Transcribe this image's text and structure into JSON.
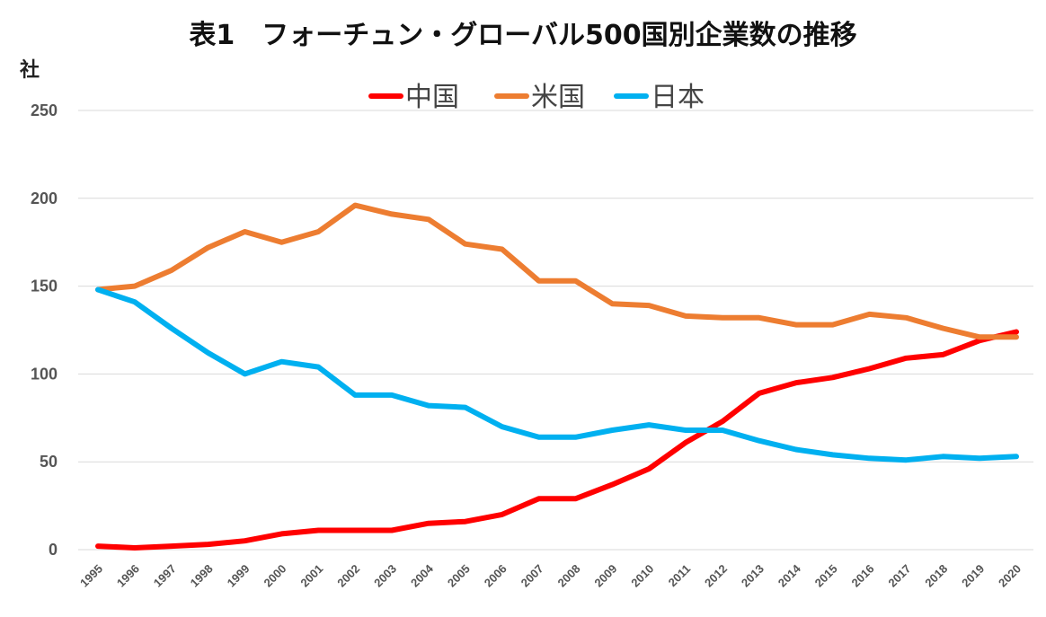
{
  "title": "表1　フォーチュン・グローバル500国別企業数の推移",
  "ylabel": "社",
  "chart_data": {
    "type": "line",
    "title": "表1　フォーチュン・グローバル500国別企業数の推移",
    "xlabel": "",
    "ylabel": "社",
    "ylim": [
      0,
      250
    ],
    "yticks": [
      0,
      50,
      100,
      150,
      200,
      250
    ],
    "grid": true,
    "legend_position": "top-center",
    "x": [
      "1995",
      "1996",
      "1997",
      "1998",
      "1999",
      "2000",
      "2001",
      "2002",
      "2003",
      "2004",
      "2005",
      "2006",
      "2007",
      "2008",
      "2009",
      "2010",
      "2011",
      "2012",
      "2013",
      "2014",
      "2015",
      "2016",
      "2017",
      "2018",
      "2019",
      "2020"
    ],
    "series": [
      {
        "name": "中国",
        "color": "#ff0000",
        "values": [
          2,
          1,
          2,
          3,
          5,
          9,
          11,
          11,
          11,
          15,
          16,
          20,
          29,
          29,
          37,
          46,
          61,
          73,
          89,
          95,
          98,
          103,
          109,
          111,
          119,
          124
        ]
      },
      {
        "name": "米国",
        "color": "#ed7d31",
        "values": [
          148,
          150,
          159,
          172,
          181,
          175,
          181,
          196,
          191,
          188,
          174,
          171,
          153,
          153,
          140,
          139,
          133,
          132,
          132,
          128,
          128,
          134,
          132,
          126,
          121,
          121
        ]
      },
      {
        "name": "日本",
        "color": "#00b0f0",
        "values": [
          148,
          141,
          126,
          112,
          100,
          107,
          104,
          88,
          88,
          82,
          81,
          70,
          64,
          64,
          68,
          71,
          68,
          68,
          62,
          57,
          54,
          52,
          51,
          53,
          52,
          53
        ]
      }
    ]
  }
}
